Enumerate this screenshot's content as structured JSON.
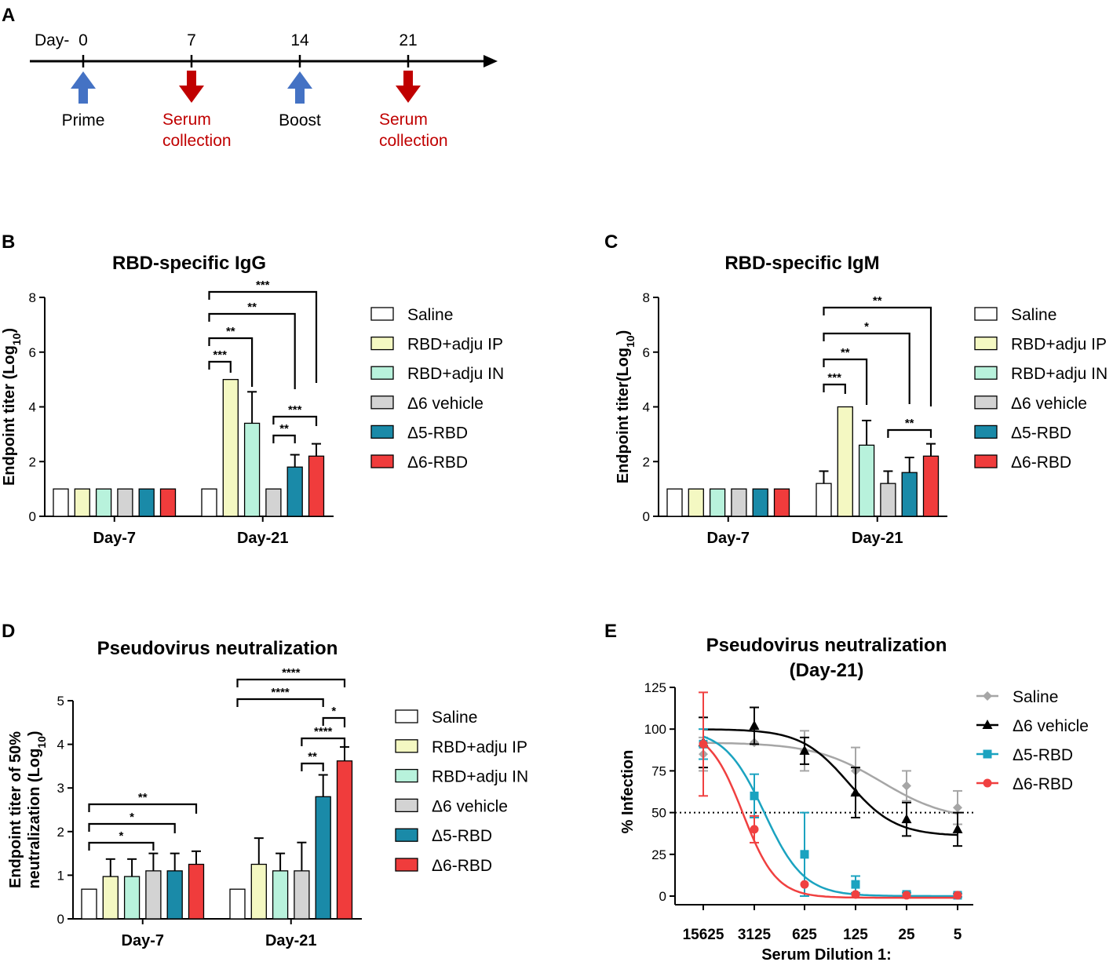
{
  "colors": {
    "saline": "#ffffff",
    "rbd_ip": "#f4f8c2",
    "rbd_in": "#b8f2dc",
    "d6_vehicle": "#d3d3d3",
    "d5_rbd": "#1a8aa8",
    "d6_rbd": "#f03c3c",
    "arrow_up": "#4472c4",
    "arrow_down": "#c00000",
    "curve_saline": "#a6a6a6",
    "curve_d6v": "#000000",
    "curve_d5": "#1ba3c0",
    "curve_d6": "#f04040"
  },
  "panel_a": {
    "letter": "A",
    "day_prefix": "Day-",
    "days": [
      "0",
      "7",
      "14",
      "21"
    ],
    "events": [
      {
        "day": 0,
        "direction": "up",
        "lines": [
          "Prime"
        ]
      },
      {
        "day": 7,
        "direction": "down",
        "lines": [
          "Serum",
          "collection"
        ]
      },
      {
        "day": 14,
        "direction": "up",
        "lines": [
          "Boost"
        ]
      },
      {
        "day": 21,
        "direction": "down",
        "lines": [
          "Serum",
          "collection"
        ]
      }
    ]
  },
  "legend_items": [
    "Saline",
    "RBD+adju IP",
    "RBD+adju IN",
    "Δ6 vehicle",
    "Δ5-RBD",
    "Δ6-RBD"
  ],
  "chart_data": [
    {
      "panel": "B",
      "type": "bar",
      "title": "RBD-specific IgG",
      "ylabel": "Endpoint titer (Log10)",
      "ylim": [
        0,
        8
      ],
      "yticks": [
        "0",
        "2",
        "4",
        "6",
        "8"
      ],
      "categories": [
        "Day-7",
        "Day-21"
      ],
      "series": [
        {
          "name": "Saline",
          "values": [
            1,
            1
          ],
          "err": [
            0,
            0
          ]
        },
        {
          "name": "RBD+adju IP",
          "values": [
            1,
            5
          ],
          "err": [
            0,
            0
          ]
        },
        {
          "name": "RBD+adju IN",
          "values": [
            1,
            3.4
          ],
          "err": [
            0,
            1.15
          ]
        },
        {
          "name": "Δ6 vehicle",
          "values": [
            1,
            1
          ],
          "err": [
            0,
            0
          ]
        },
        {
          "name": "Δ5-RBD",
          "values": [
            1,
            1.8
          ],
          "err": [
            0,
            0.45
          ]
        },
        {
          "name": "Δ6-RBD",
          "values": [
            1,
            2.2
          ],
          "err": [
            0,
            0.45
          ]
        }
      ],
      "significance": [
        {
          "group": 1,
          "from": 0,
          "to": 1,
          "label": "***"
        },
        {
          "group": 1,
          "from": 0,
          "to": 2,
          "label": "**"
        },
        {
          "group": 1,
          "from": 0,
          "to": 4,
          "label": "**"
        },
        {
          "group": 1,
          "from": 0,
          "to": 5,
          "label": "***"
        },
        {
          "group": 1,
          "from": 3,
          "to": 4,
          "label": "**"
        },
        {
          "group": 1,
          "from": 3,
          "to": 5,
          "label": "***"
        }
      ]
    },
    {
      "panel": "C",
      "type": "bar",
      "title": "RBD-specific IgM",
      "ylabel": "Endpoint titer(Log10)",
      "ylim": [
        0,
        8
      ],
      "yticks": [
        "0",
        "2",
        "4",
        "6",
        "8"
      ],
      "categories": [
        "Day-7",
        "Day-21"
      ],
      "series": [
        {
          "name": "Saline",
          "values": [
            1,
            1.2
          ],
          "err": [
            0,
            0.45
          ]
        },
        {
          "name": "RBD+adju IP",
          "values": [
            1,
            4
          ],
          "err": [
            0,
            0
          ]
        },
        {
          "name": "RBD+adju IN",
          "values": [
            1,
            2.6
          ],
          "err": [
            0,
            0.9
          ]
        },
        {
          "name": "Δ6 vehicle",
          "values": [
            1,
            1.2
          ],
          "err": [
            0,
            0.45
          ]
        },
        {
          "name": "Δ5-RBD",
          "values": [
            1,
            1.6
          ],
          "err": [
            0,
            0.55
          ]
        },
        {
          "name": "Δ6-RBD",
          "values": [
            1,
            2.2
          ],
          "err": [
            0,
            0.45
          ]
        }
      ],
      "significance": [
        {
          "group": 1,
          "from": 0,
          "to": 1,
          "label": "***"
        },
        {
          "group": 1,
          "from": 0,
          "to": 2,
          "label": "**"
        },
        {
          "group": 1,
          "from": 0,
          "to": 4,
          "label": "*"
        },
        {
          "group": 1,
          "from": 0,
          "to": 5,
          "label": "**"
        },
        {
          "group": 1,
          "from": 3,
          "to": 5,
          "label": "**"
        }
      ]
    },
    {
      "panel": "D",
      "type": "bar",
      "title": "Pseudovirus neutralization",
      "ylabel_line1": "Endpoint titer of 50%",
      "ylabel_line2": "neutralization (Log10)",
      "ylim": [
        0,
        5
      ],
      "yticks": [
        "0",
        "1",
        "2",
        "3",
        "4",
        "5"
      ],
      "categories": [
        "Day-7",
        "Day-21"
      ],
      "series": [
        {
          "name": "Saline",
          "values": [
            0.68,
            0.68
          ],
          "err": [
            0,
            0
          ]
        },
        {
          "name": "RBD+adju IP",
          "values": [
            0.97,
            1.25
          ],
          "err": [
            0.4,
            0.6
          ]
        },
        {
          "name": "RBD+adju IN",
          "values": [
            0.97,
            1.1
          ],
          "err": [
            0.4,
            0.4
          ]
        },
        {
          "name": "Δ6 vehicle",
          "values": [
            1.1,
            1.1
          ],
          "err": [
            0.4,
            0.65
          ]
        },
        {
          "name": "Δ5-RBD",
          "values": [
            1.1,
            2.8
          ],
          "err": [
            0.4,
            0.5
          ]
        },
        {
          "name": "Δ6-RBD",
          "values": [
            1.25,
            3.62
          ],
          "err": [
            0.3,
            0.32
          ]
        }
      ],
      "significance": [
        {
          "group": 0,
          "from": 0,
          "to": 3,
          "label": "*"
        },
        {
          "group": 0,
          "from": 0,
          "to": 4,
          "label": "*"
        },
        {
          "group": 0,
          "from": 0,
          "to": 5,
          "label": "**"
        },
        {
          "group": 1,
          "from": 3,
          "to": 4,
          "label": "**"
        },
        {
          "group": 1,
          "from": 3,
          "to": 5,
          "label": "****"
        },
        {
          "group": 1,
          "from": 4,
          "to": 5,
          "label": "*"
        },
        {
          "group": 1,
          "from": 0,
          "to": 4,
          "label": "****"
        },
        {
          "group": 1,
          "from": 0,
          "to": 5,
          "label": "****"
        }
      ]
    },
    {
      "panel": "E",
      "type": "line",
      "title_line1": "Pseudovirus neutralization",
      "title_line2": "(Day-21)",
      "ylabel": "% Infection",
      "xlabel": "Serum Dilution 1:",
      "x": [
        "15625",
        "3125",
        "625",
        "125",
        "25",
        "5"
      ],
      "ylim": [
        0,
        125
      ],
      "yticks": [
        "0",
        "25",
        "50",
        "75",
        "100",
        "125"
      ],
      "reference_line": 50,
      "series": [
        {
          "name": "Saline",
          "marker": "diamond",
          "values": [
            85,
            92,
            87,
            75,
            66,
            53
          ],
          "err": [
            10,
            0,
            12,
            14,
            9,
            10
          ],
          "fit": {
            "bottom": 45,
            "top": 92,
            "mid": 3.5,
            "slope": 0.95
          }
        },
        {
          "name": "Δ6 vehicle",
          "marker": "triangle",
          "values": [
            92,
            102,
            87,
            62,
            46,
            40
          ],
          "err": [
            15,
            11,
            8,
            15,
            10,
            10
          ],
          "fit": {
            "bottom": 36,
            "top": 100,
            "mid": 2.85,
            "slope": 1.35
          }
        },
        {
          "name": "Δ5-RBD",
          "marker": "square",
          "values": [
            91,
            60,
            25,
            7,
            1,
            0.5
          ],
          "err": [
            9,
            13,
            25,
            5,
            1,
            1
          ],
          "fit": {
            "bottom": 0,
            "top": 100,
            "mid": 1.2,
            "slope": 1.6
          }
        },
        {
          "name": "Δ6-RBD",
          "marker": "circle",
          "values": [
            91,
            40,
            7,
            1,
            0.5,
            0.5
          ],
          "err": [
            31,
            8,
            0,
            0,
            0,
            0
          ],
          "fit": {
            "bottom": -1,
            "top": 100,
            "mid": 0.78,
            "slope": 1.9
          }
        }
      ]
    }
  ]
}
